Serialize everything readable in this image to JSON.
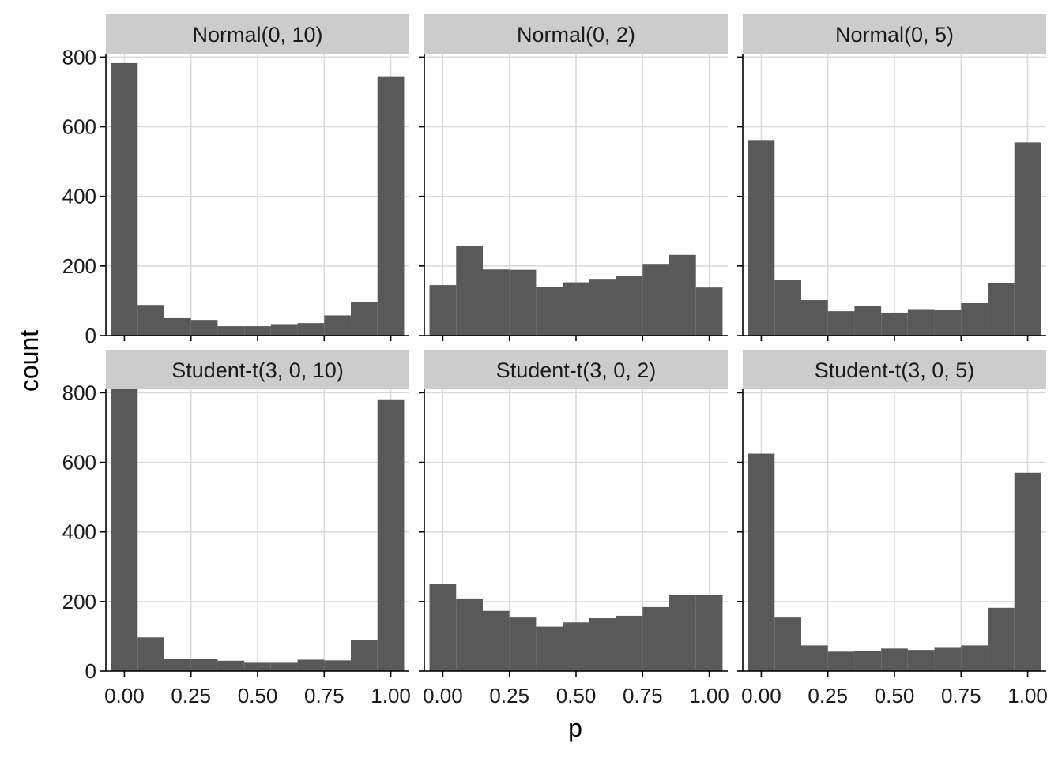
{
  "chart_data": {
    "type": "bar",
    "chart_kind": "faceted histogram",
    "xlabel": "p",
    "ylabel": "count",
    "xlim": [
      -0.0694,
      1.0694
    ],
    "ylim": [
      0,
      800
    ],
    "x_ticks": [
      "0.00",
      "0.25",
      "0.50",
      "0.75",
      "1.00"
    ],
    "y_ticks": [
      "0",
      "200",
      "400",
      "600",
      "800"
    ],
    "grid": true,
    "bin_centers": [
      0.0,
      0.1,
      0.2,
      0.3,
      0.4,
      0.5,
      0.6,
      0.7,
      0.8,
      0.9,
      1.0
    ],
    "bin_width": 0.1,
    "bar_color": "#595959",
    "strip_color": "#cccccc",
    "grid_color": "#d9d9d9",
    "panels": [
      {
        "title": "Normal(0, 10)",
        "values": [
          783,
          88,
          50,
          45,
          27,
          27,
          33,
          36,
          58,
          96,
          745
        ]
      },
      {
        "title": "Normal(0, 2)",
        "values": [
          145,
          258,
          190,
          189,
          140,
          153,
          163,
          172,
          206,
          232,
          138
        ]
      },
      {
        "title": "Normal(0, 5)",
        "values": [
          562,
          161,
          102,
          70,
          84,
          66,
          76,
          73,
          93,
          152,
          555
        ]
      },
      {
        "title": "Student-t(3, 0, 10)",
        "values": [
          810,
          97,
          35,
          35,
          30,
          24,
          24,
          33,
          31,
          90,
          781
        ]
      },
      {
        "title": "Student-t(3, 0, 2)",
        "values": [
          251,
          209,
          173,
          154,
          128,
          140,
          152,
          159,
          184,
          219,
          219
        ]
      },
      {
        "title": "Student-t(3, 0, 5)",
        "values": [
          625,
          154,
          74,
          56,
          58,
          65,
          61,
          67,
          74,
          182,
          570
        ]
      }
    ]
  }
}
